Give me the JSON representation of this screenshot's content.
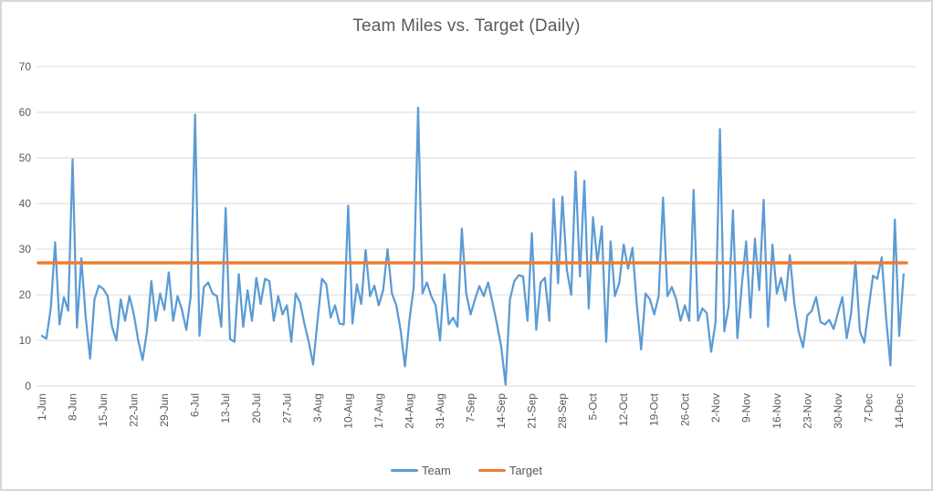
{
  "frame": {
    "background_color": "#FFFFFF",
    "border_color": "#D7D7D7"
  },
  "chart_data": {
    "type": "line",
    "title": "Team Miles vs. Target (Daily)",
    "xlabel": "",
    "ylabel": "",
    "ylim": [
      0,
      70
    ],
    "y_ticks": [
      0,
      10,
      20,
      30,
      40,
      50,
      60,
      70
    ],
    "grid": "horizontal",
    "grid_color": "#D9D9D9",
    "axis_label_color": "#595959",
    "title_color": "#595959",
    "legend_position": "bottom",
    "x_start_date": "1-Jun",
    "x_end_date": "14-Dec",
    "x_tick_interval_days": 7,
    "x_tick_labels": [
      "1-Jun",
      "8-Jun",
      "15-Jun",
      "22-Jun",
      "29-Jun",
      "6-Jul",
      "13-Jul",
      "20-Jul",
      "27-Jul",
      "3-Aug",
      "10-Aug",
      "17-Aug",
      "24-Aug",
      "31-Aug",
      "7-Sep",
      "14-Sep",
      "21-Sep",
      "28-Sep",
      "5-Oct",
      "12-Oct",
      "19-Oct",
      "26-Oct",
      "2-Nov",
      "9-Nov",
      "16-Nov",
      "23-Nov",
      "30-Nov",
      "7-Dec",
      "14-Dec"
    ],
    "series": [
      {
        "name": "Team",
        "color": "#5B9BD5",
        "values": [
          11,
          10.4,
          17,
          31.5,
          13.5,
          19.5,
          16.5,
          49.7,
          12.8,
          28,
          15,
          6,
          19,
          22,
          21.3,
          19.7,
          13,
          10,
          19,
          14.3,
          19.7,
          15.7,
          10,
          5.7,
          12,
          23,
          14.3,
          20.3,
          16.7,
          24.9,
          14.3,
          19.7,
          16.7,
          12.3,
          19.7,
          59.5,
          11,
          21.7,
          22.7,
          20.3,
          19.7,
          13,
          39,
          10.3,
          9.7,
          24.5,
          13,
          21,
          14.3,
          23.7,
          18,
          23.5,
          23,
          14.3,
          19.7,
          15.7,
          17.7,
          9.7,
          20.3,
          18.3,
          13.7,
          9.7,
          4.7,
          14.3,
          23.5,
          22.3,
          15,
          17.7,
          13.7,
          13.5,
          39.5,
          13.7,
          22.3,
          18,
          29.8,
          19.7,
          22,
          17.7,
          21,
          30,
          20.3,
          17.7,
          12.3,
          4.3,
          14.3,
          21.7,
          61,
          20.3,
          22.7,
          19.7,
          17.7,
          10,
          24.5,
          13.5,
          15,
          13,
          34.5,
          20.3,
          15.7,
          19,
          21.9,
          19.7,
          22.7,
          18.3,
          13.7,
          8.7,
          0.3,
          19,
          23,
          24.3,
          24,
          14.3,
          33.5,
          12.3,
          22.7,
          23.7,
          14.3,
          41,
          22.5,
          41.5,
          25.5,
          20,
          47,
          24,
          45,
          17,
          37,
          27,
          35,
          9.7,
          31.7,
          19.7,
          22.7,
          31,
          25.7,
          30.3,
          17.7,
          8,
          20.3,
          19,
          15.7,
          19.7,
          41.3,
          19.7,
          21.7,
          19,
          14.3,
          17.7,
          14.3,
          43,
          14.3,
          17,
          16,
          7.5,
          14,
          56.3,
          12,
          17.5,
          38.5,
          10.5,
          22,
          31.7,
          15,
          32.3,
          21,
          40.8,
          13,
          31,
          20.3,
          23.7,
          18.7,
          28.7,
          18.3,
          12,
          8.5,
          15.5,
          16.5,
          19.5,
          14,
          13.5,
          14.5,
          12.5,
          16,
          19.5,
          10.5,
          16,
          27.3,
          12,
          9.5,
          17,
          24.2,
          23.5,
          28.2,
          15,
          4.5,
          36.5,
          11,
          24.5
        ]
      },
      {
        "name": "Target",
        "color": "#ED7D31",
        "type": "constant",
        "value": 27
      }
    ]
  },
  "legend": {
    "items": [
      {
        "label": "Team",
        "color": "#5B9BD5"
      },
      {
        "label": "Target",
        "color": "#ED7D31"
      }
    ]
  }
}
